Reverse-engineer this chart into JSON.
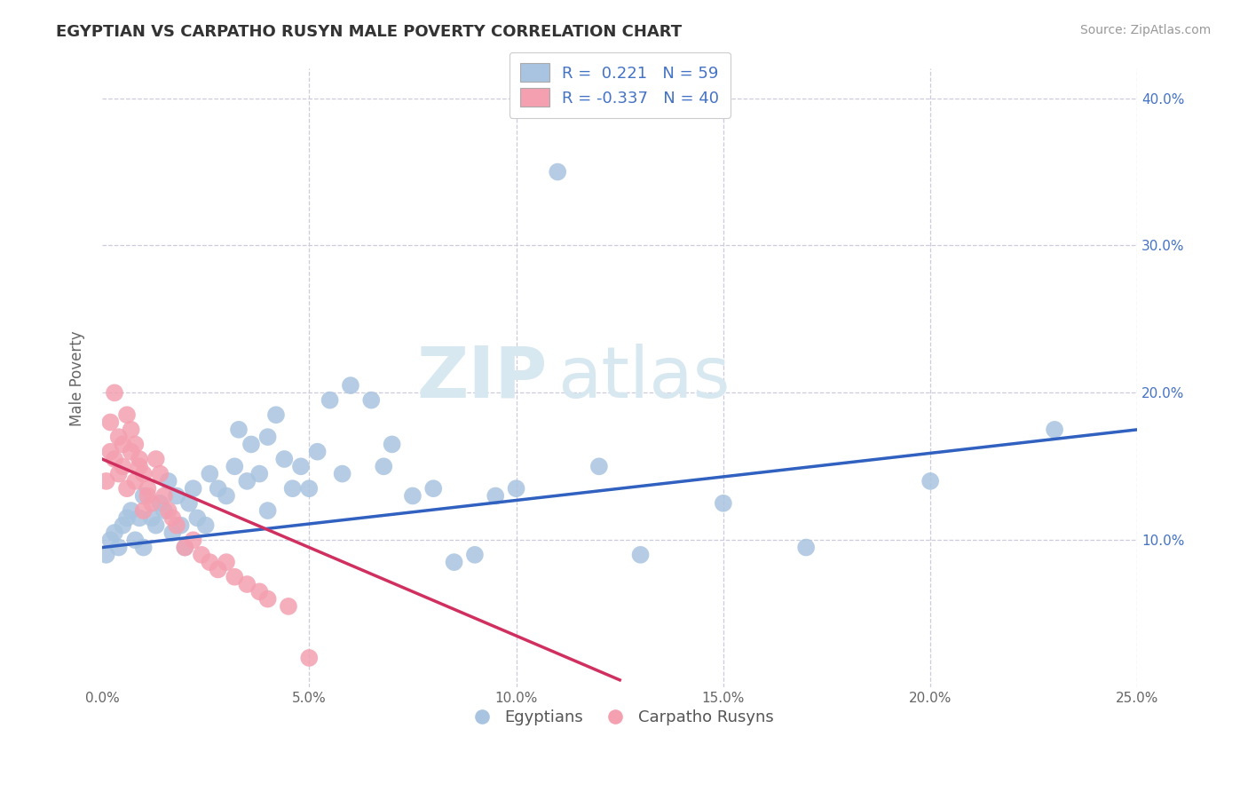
{
  "title": "EGYPTIAN VS CARPATHO RUSYN MALE POVERTY CORRELATION CHART",
  "source": "Source: ZipAtlas.com",
  "xlabel": "",
  "ylabel": "Male Poverty",
  "xlim": [
    0.0,
    0.25
  ],
  "ylim": [
    0.0,
    0.42
  ],
  "xticks": [
    0.0,
    0.05,
    0.1,
    0.15,
    0.2,
    0.25
  ],
  "xticklabels": [
    "0.0%",
    "5.0%",
    "10.0%",
    "15.0%",
    "20.0%",
    "25.0%"
  ],
  "yticks_right": [
    0.1,
    0.2,
    0.3,
    0.4
  ],
  "yticklabels_right": [
    "10.0%",
    "20.0%",
    "30.0%",
    "40.0%"
  ],
  "yticks_grid": [
    0.1,
    0.2,
    0.3,
    0.4
  ],
  "legend_r1": "R =  0.221",
  "legend_n1": "N = 59",
  "legend_r2": "R = -0.337",
  "legend_n2": "N = 40",
  "blue_color": "#a8c4e0",
  "pink_color": "#f4a0b0",
  "line_blue": "#3060c0",
  "line_pink": "#d03060",
  "watermark_zip": "ZIP",
  "watermark_atlas": "atlas",
  "bg_color": "#ffffff",
  "grid_color": "#ccccdd",
  "blue_scatter_x": [
    0.001,
    0.002,
    0.003,
    0.004,
    0.005,
    0.006,
    0.007,
    0.008,
    0.009,
    0.01,
    0.01,
    0.012,
    0.013,
    0.014,
    0.015,
    0.016,
    0.017,
    0.018,
    0.019,
    0.02,
    0.021,
    0.022,
    0.023,
    0.025,
    0.026,
    0.028,
    0.03,
    0.032,
    0.033,
    0.035,
    0.036,
    0.038,
    0.04,
    0.04,
    0.042,
    0.044,
    0.046,
    0.048,
    0.05,
    0.052,
    0.055,
    0.058,
    0.06,
    0.065,
    0.068,
    0.07,
    0.075,
    0.08,
    0.085,
    0.09,
    0.095,
    0.1,
    0.11,
    0.12,
    0.13,
    0.15,
    0.17,
    0.2,
    0.23
  ],
  "blue_scatter_y": [
    0.09,
    0.1,
    0.105,
    0.095,
    0.11,
    0.115,
    0.12,
    0.1,
    0.115,
    0.095,
    0.13,
    0.115,
    0.11,
    0.125,
    0.12,
    0.14,
    0.105,
    0.13,
    0.11,
    0.095,
    0.125,
    0.135,
    0.115,
    0.11,
    0.145,
    0.135,
    0.13,
    0.15,
    0.175,
    0.14,
    0.165,
    0.145,
    0.17,
    0.12,
    0.185,
    0.155,
    0.135,
    0.15,
    0.135,
    0.16,
    0.195,
    0.145,
    0.205,
    0.195,
    0.15,
    0.165,
    0.13,
    0.135,
    0.085,
    0.09,
    0.13,
    0.135,
    0.35,
    0.15,
    0.09,
    0.125,
    0.095,
    0.14,
    0.175
  ],
  "pink_scatter_x": [
    0.001,
    0.002,
    0.002,
    0.003,
    0.003,
    0.004,
    0.004,
    0.005,
    0.005,
    0.006,
    0.006,
    0.007,
    0.007,
    0.008,
    0.008,
    0.009,
    0.009,
    0.01,
    0.01,
    0.011,
    0.011,
    0.012,
    0.013,
    0.014,
    0.015,
    0.016,
    0.017,
    0.018,
    0.02,
    0.022,
    0.024,
    0.026,
    0.028,
    0.03,
    0.032,
    0.035,
    0.038,
    0.04,
    0.045,
    0.05
  ],
  "pink_scatter_y": [
    0.14,
    0.16,
    0.18,
    0.155,
    0.2,
    0.145,
    0.17,
    0.15,
    0.165,
    0.185,
    0.135,
    0.16,
    0.175,
    0.14,
    0.165,
    0.15,
    0.155,
    0.145,
    0.12,
    0.135,
    0.13,
    0.125,
    0.155,
    0.145,
    0.13,
    0.12,
    0.115,
    0.11,
    0.095,
    0.1,
    0.09,
    0.085,
    0.08,
    0.085,
    0.075,
    0.07,
    0.065,
    0.06,
    0.055,
    0.02
  ],
  "blue_line_x": [
    0.0,
    0.25
  ],
  "blue_line_y": [
    0.095,
    0.175
  ],
  "pink_line_x": [
    0.0,
    0.125
  ],
  "pink_line_y": [
    0.155,
    0.005
  ]
}
